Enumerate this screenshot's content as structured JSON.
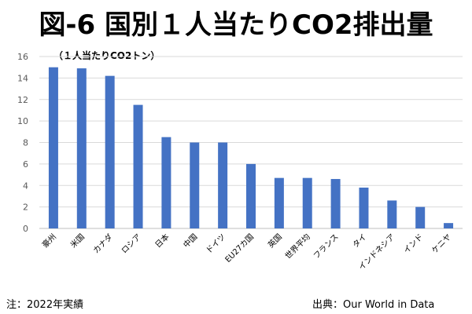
{
  "chart_data": {
    "type": "bar",
    "title": "図-6 国別１人当たりCO2排出量",
    "unit_label": "（１人当たりCO2トン）",
    "categories": [
      "豪州",
      "米国",
      "カナダ",
      "ロシア",
      "日本",
      "中国",
      "ドイツ",
      "EU27カ国",
      "英国",
      "世界平均",
      "フランス",
      "タイ",
      "インドネシア",
      "インド",
      "ケニヤ"
    ],
    "values": [
      15.0,
      14.9,
      14.2,
      11.5,
      8.5,
      8.0,
      8.0,
      6.0,
      4.7,
      4.7,
      4.6,
      3.8,
      2.6,
      2.0,
      0.5
    ],
    "ylim": [
      0,
      16
    ],
    "yticks": [
      0,
      2,
      4,
      6,
      8,
      10,
      12,
      14,
      16
    ],
    "grid": true,
    "bar_color": "#4472C4"
  },
  "footer": {
    "note": "注：2022年実績",
    "source": "出典：Our World in Data"
  }
}
